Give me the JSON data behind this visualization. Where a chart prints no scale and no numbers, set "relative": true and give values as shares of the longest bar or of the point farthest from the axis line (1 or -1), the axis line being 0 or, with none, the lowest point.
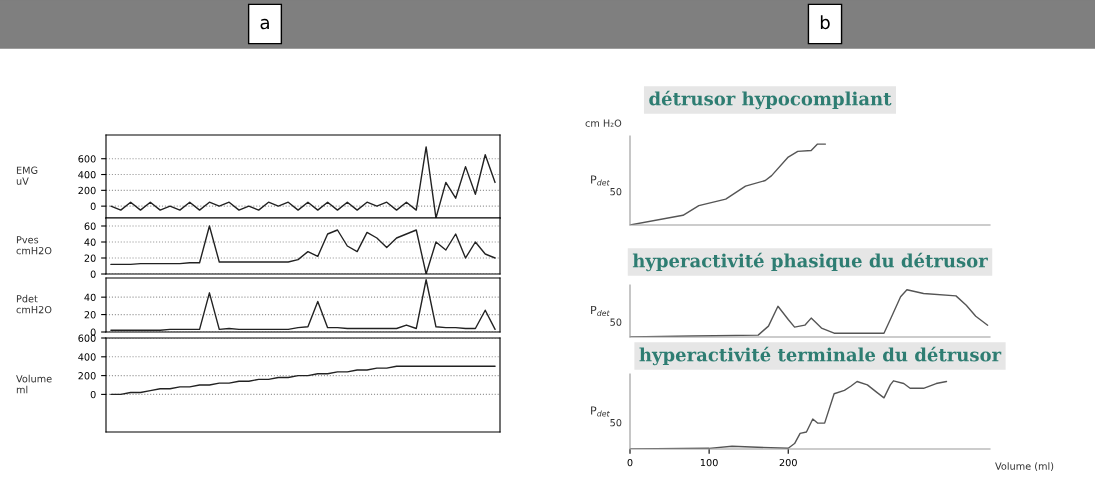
{
  "chart_data": [
    {
      "type": "line",
      "title": "a",
      "ylabel": "EMG\nuV",
      "categories": [
        null,
        null,
        null,
        null,
        null,
        null,
        null,
        null,
        null,
        null,
        null,
        null,
        null,
        null,
        null,
        null,
        null,
        null,
        null,
        null,
        null,
        null,
        null,
        null,
        null,
        null,
        null,
        null,
        null,
        null,
        null,
        null,
        null,
        null,
        null,
        null,
        null,
        null,
        null,
        null
      ],
      "series": [
        {
          "color": "#222222",
          "values": [
            0,
            -50,
            50,
            -50,
            50,
            -50,
            0,
            -50,
            50,
            -50,
            50,
            0,
            50,
            -50,
            0,
            -50,
            50,
            0,
            50,
            -50,
            50,
            -50,
            50,
            -50,
            50,
            -50,
            50,
            0,
            50,
            -50,
            50,
            -50,
            750,
            -150,
            300,
            100,
            500,
            150,
            650,
            300
          ]
        }
      ],
      "ylim": [
        -150,
        900
      ],
      "yticks": [
        0,
        200,
        400,
        600
      ],
      "tick_labels": "y",
      "grid": "y"
    },
    {
      "type": "line",
      "ylabel": "Pves\ncmH2O",
      "categories": [
        null,
        null,
        null,
        null,
        null,
        null,
        null,
        null,
        null,
        null,
        null,
        null,
        null,
        null,
        null,
        null,
        null,
        null,
        null,
        null,
        null,
        null,
        null,
        null,
        null,
        null,
        null,
        null,
        null,
        null,
        null,
        null,
        null,
        null,
        null,
        null,
        null,
        null,
        null,
        null
      ],
      "series": [
        {
          "color": "#222222",
          "values": [
            12,
            12,
            12,
            13,
            13,
            13,
            13,
            13,
            14,
            14,
            60,
            15,
            15,
            15,
            15,
            15,
            15,
            15,
            15,
            18,
            28,
            22,
            50,
            55,
            35,
            28,
            52,
            45,
            33,
            45,
            50,
            55,
            0,
            40,
            30,
            50,
            20,
            40,
            25,
            20
          ]
        }
      ],
      "ylim": [
        0,
        70
      ],
      "yticks": [
        0,
        20,
        40,
        60
      ],
      "tick_labels": "y",
      "grid": "y"
    },
    {
      "type": "line",
      "ylabel": "Pdet\ncmH2O",
      "categories": [
        null,
        null,
        null,
        null,
        null,
        null,
        null,
        null,
        null,
        null,
        null,
        null,
        null,
        null,
        null,
        null,
        null,
        null,
        null,
        null,
        null,
        null,
        null,
        null,
        null,
        null,
        null,
        null,
        null,
        null,
        null,
        null,
        null,
        null,
        null,
        null,
        null,
        null,
        null,
        null
      ],
      "series": [
        {
          "color": "#222222",
          "values": [
            2,
            2,
            2,
            2,
            2,
            2,
            3,
            3,
            3,
            3,
            45,
            3,
            4,
            3,
            3,
            3,
            3,
            3,
            3,
            5,
            6,
            35,
            5,
            5,
            4,
            4,
            4,
            4,
            4,
            4,
            8,
            4,
            60,
            6,
            5,
            5,
            4,
            4,
            25,
            3
          ]
        }
      ],
      "ylim": [
        0,
        62
      ],
      "yticks": [
        0,
        20,
        40
      ],
      "tick_labels": "y",
      "grid": "y"
    },
    {
      "type": "line",
      "ylabel": "Volume\nml",
      "categories": [
        null,
        null,
        null,
        null,
        null,
        null,
        null,
        null,
        null,
        null,
        null,
        null,
        null,
        null,
        null,
        null,
        null,
        null,
        null,
        null,
        null,
        null,
        null,
        null,
        null,
        null,
        null,
        null,
        null,
        null,
        null,
        null,
        null,
        null,
        null,
        null,
        null,
        null,
        null,
        null
      ],
      "series": [
        {
          "color": "#222222",
          "values": [
            0,
            0,
            20,
            20,
            40,
            60,
            60,
            80,
            80,
            100,
            100,
            120,
            120,
            140,
            140,
            160,
            160,
            180,
            180,
            200,
            200,
            220,
            220,
            240,
            240,
            260,
            260,
            280,
            280,
            300,
            300,
            300,
            300,
            300,
            300,
            300,
            300,
            300,
            300,
            300
          ]
        }
      ],
      "ylim": [
        -400,
        600
      ],
      "yticks": [
        0,
        200,
        400,
        600
      ],
      "tick_labels": "y",
      "grid": "y"
    },
    {
      "type": "line",
      "title": "b",
      "subtitle": "détrusor hypocompliant",
      "ylabel": "P$_{det}$",
      "annotations": [
        "cm H₂O",
        "50"
      ],
      "relative": true,
      "series": [
        {
          "color": "#555555",
          "x": [
            0,
            67,
            87,
            121,
            146,
            171,
            179,
            200,
            212,
            229,
            237,
            247
          ],
          "values": [
            0,
            0.12,
            0.24,
            0.32,
            0.48,
            0.55,
            0.61,
            0.84,
            0.91,
            0.92,
            1,
            1
          ]
        }
      ],
      "xlim": [
        0,
        455
      ],
      "tick_labels": false
    },
    {
      "type": "line",
      "subtitle": "hyperactivité phasique du détrusor",
      "ylabel": "P$_{det}$",
      "series": [
        {
          "color": "#555555",
          "x": [
            0,
            79,
            162,
            175,
            187,
            200,
            208,
            221,
            229,
            242,
            258,
            321,
            329,
            342,
            350,
            371,
            412,
            425,
            437,
            452
          ],
          "values": [
            0,
            0.02,
            0.04,
            0.23,
            0.65,
            0.37,
            0.21,
            0.25,
            0.4,
            0.19,
            0.08,
            0.08,
            0.37,
            0.85,
            1,
            0.92,
            0.87,
            0.67,
            0.44,
            0.25
          ]
        }
      ],
      "annotations": [
        "50"
      ],
      "relative": true,
      "xlim": [
        0,
        455
      ],
      "tick_labels": false
    },
    {
      "type": "line",
      "subtitle": "hyperactivité terminale du détrusor",
      "ylabel": "P$_{det}$",
      "xlabel": "Volume (ml)",
      "series": [
        {
          "color": "#555555",
          "x": [
            0,
            100,
            129,
            200,
            208,
            215,
            223,
            231,
            237,
            246,
            258,
            271,
            279,
            287,
            300,
            312,
            321,
            329,
            333,
            346,
            354,
            371,
            387,
            400
          ],
          "values": [
            0,
            0.01,
            0.04,
            0.01,
            0.08,
            0.23,
            0.25,
            0.44,
            0.38,
            0.38,
            0.81,
            0.86,
            0.92,
            0.99,
            0.94,
            0.83,
            0.75,
            0.94,
            1,
            0.96,
            0.89,
            0.89,
            0.96,
            0.99
          ]
        }
      ],
      "annotations": [
        "50"
      ],
      "relative": true,
      "xlim": [
        0,
        455
      ],
      "xticks": [
        0,
        100,
        200
      ],
      "tick_labels": "x"
    }
  ]
}
